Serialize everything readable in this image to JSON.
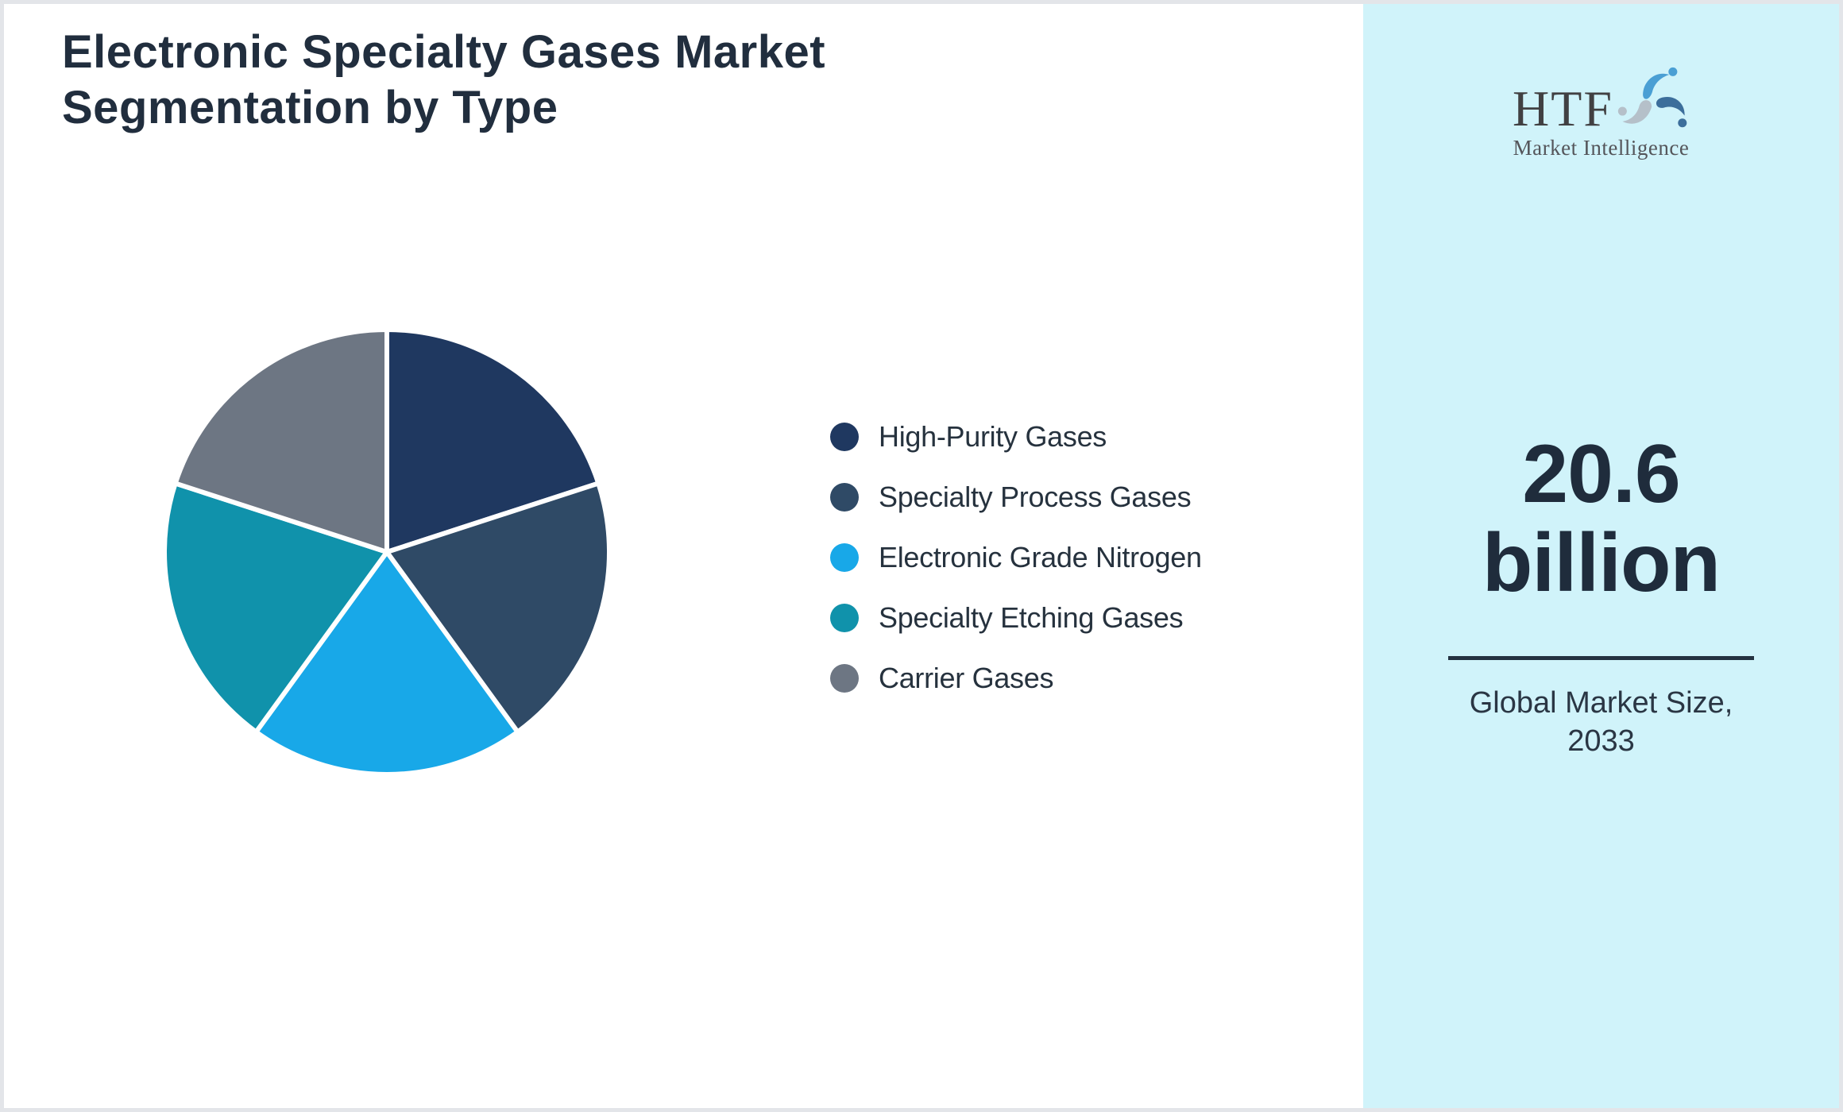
{
  "header": {
    "title_line1": "Electronic Specialty Gases Market",
    "title_line2": "Segmentation by Type"
  },
  "chart_data": {
    "type": "pie",
    "title": "Electronic Specialty Gases Market Segmentation by Type",
    "segments": [
      {
        "label": "High-Purity Gases",
        "value": 20,
        "color": "#1f3860"
      },
      {
        "label": "Specialty Process Gases",
        "value": 20,
        "color": "#2f4a66"
      },
      {
        "label": "Electronic Grade Nitrogen",
        "value": 20,
        "color": "#18a8e8"
      },
      {
        "label": "Specialty Etching Gases",
        "value": 20,
        "color": "#1092ab"
      },
      {
        "label": "Carrier Gases",
        "value": 20,
        "color": "#6d7683"
      }
    ],
    "start_angle_deg": 0,
    "direction": "clockwise",
    "legend_position": "right",
    "slice_gap_color": "#ffffff"
  },
  "sidebar": {
    "logo_text": "HTF",
    "logo_subtext": "Market Intelligence",
    "stat_value": "20.6",
    "stat_unit": "billion",
    "caption_line1": "Global Market Size,",
    "caption_line2": "2033",
    "background_color": "#d0f3fa"
  },
  "colors": {
    "frame_border": "#e3e5e9",
    "main_background": "#ffffff",
    "title_text": "#212e3e",
    "stat_text": "#1f2c3c",
    "divider": "#233140"
  }
}
